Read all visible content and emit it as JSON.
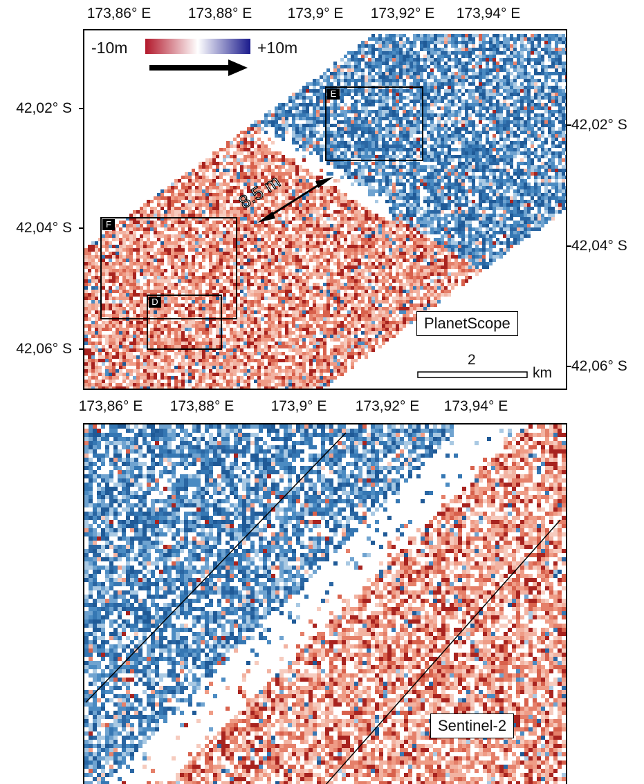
{
  "top_map": {
    "lon_ticks_top": [
      "173,86° E",
      "173,88° E",
      "173,9° E",
      "173,92° E",
      "173,94° E"
    ],
    "lon_ticks_bottom": [
      "173,86° E",
      "173,88° E",
      "173,9° E",
      "173,92° E",
      "173,94° E"
    ],
    "lat_ticks_left": [
      "42,02° S",
      "42,04° S",
      "42,06° S"
    ],
    "lat_ticks_right": [
      "42,02° S",
      "42,04° S",
      "42,06° S"
    ],
    "colorbar": {
      "min_label": "-10m",
      "max_label": "+10m",
      "low_color": "#b2182b",
      "mid_color": "#ffffff",
      "high_color": "#1a1a8c"
    },
    "displacement_label": "8.5 m",
    "subset_boxes": [
      "E",
      "F",
      "D"
    ],
    "sensor_label": "PlanetScope",
    "scalebar": {
      "value": "2",
      "unit": "km"
    }
  },
  "bottom_map": {
    "sensor_label": "Sentinel-2"
  },
  "colors": {
    "blue": "#2f6faa",
    "red": "#e5806a",
    "dark_red": "#a8231f"
  }
}
